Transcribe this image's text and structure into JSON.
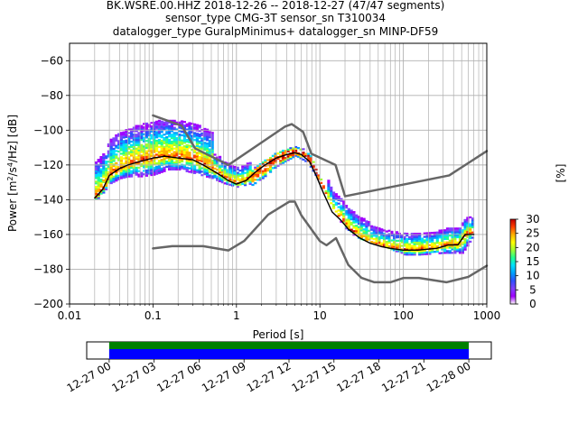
{
  "title_lines": [
    "BK.WSRE.00.HHZ   2018-12-26 -- 2018-12-27  (47/47 segments)",
    "sensor_type CMG-3T sensor_sn T310034",
    "datalogger_type GuralpMinimus+ datalogger_sn MINP-DF59"
  ],
  "chart_data": {
    "type": "heatmap",
    "xlabel": "Period [s]",
    "ylabel": "Power [m²/s⁴/Hz] [dB]",
    "ylabel_parts": {
      "prefix": "Power [m",
      "sup1": "2",
      "mid": "/s",
      "sup2": "4",
      "suffix": "/Hz] [dB]"
    },
    "xscale": "log",
    "xlim": [
      0.01,
      1000
    ],
    "ylim": [
      -200,
      -50
    ],
    "xticks": [
      0.01,
      0.1,
      1,
      10,
      100,
      1000
    ],
    "xtick_labels": [
      "0.01",
      "0.1",
      "1",
      "10",
      "100",
      "1000"
    ],
    "yticks": [
      -200,
      -180,
      -160,
      -140,
      -120,
      -100,
      -80,
      -60
    ],
    "ytick_labels": [
      "−200",
      "−180",
      "−160",
      "−140",
      "−120",
      "−100",
      "−80",
      "−60"
    ],
    "grid": true,
    "colorbar": {
      "label": "[%]",
      "range": [
        0,
        30
      ],
      "ticks": [
        0,
        5,
        10,
        15,
        20,
        25,
        30
      ],
      "tick_labels": [
        "0",
        "5",
        "10",
        "15",
        "20",
        "25",
        "30"
      ]
    },
    "mean_curve": {
      "period": [
        0.02,
        0.025,
        0.03,
        0.04,
        0.05,
        0.07,
        0.1,
        0.14,
        0.2,
        0.3,
        0.4,
        0.6,
        0.8,
        1.0,
        1.3,
        1.7,
        2.2,
        3.0,
        4.0,
        5.0,
        6.0,
        7.5,
        9.0,
        11,
        14,
        18,
        22,
        30,
        40,
        55,
        70,
        100,
        150,
        250,
        350,
        450,
        550,
        700
      ],
      "power_db": [
        -139,
        -134,
        -126,
        -122,
        -120,
        -118,
        -116,
        -115,
        -116,
        -117,
        -120,
        -125,
        -129,
        -131,
        -129,
        -124,
        -120,
        -116,
        -114,
        -113,
        -114,
        -118,
        -126,
        -136,
        -147,
        -152,
        -157,
        -162,
        -165,
        -167,
        -168,
        -169,
        -169,
        -168,
        -166,
        -166,
        -160,
        -160
      ]
    },
    "percentile_curve_lower": {
      "period": [
        0.02,
        0.025,
        0.03,
        0.04,
        0.05,
        0.07,
        0.1,
        0.15,
        0.2,
        0.3,
        0.5,
        0.7,
        1.0,
        1.5,
        2.0,
        3.0,
        5.0,
        7.0,
        10,
        15,
        20,
        30,
        50,
        80,
        100,
        150,
        300,
        500,
        700
      ],
      "power_db": [
        -141,
        -136,
        -131,
        -128,
        -127,
        -127,
        -126,
        -123,
        -123,
        -125,
        -128,
        -131,
        -133,
        -131,
        -127,
        -120,
        -114,
        -118,
        -130,
        -147,
        -157,
        -162,
        -165,
        -169,
        -172,
        -172,
        -171,
        -171,
        -160
      ]
    },
    "peterson_nhnm": {
      "period": [
        0.1,
        0.22,
        0.32,
        0.8,
        3.8,
        4.6,
        6.3,
        7.9,
        15.4,
        20,
        354.8,
        1000
      ],
      "power_db": [
        -91.5,
        -97.4,
        -110.5,
        -120,
        -98,
        -96.5,
        -101,
        -113.5,
        -120,
        -138,
        -126,
        -112
      ]
    },
    "peterson_nlnm": {
      "period": [
        0.1,
        0.17,
        0.4,
        0.8,
        1.24,
        2.4,
        4.3,
        5.0,
        6.0,
        10,
        12,
        15.6,
        21.9,
        31.6,
        45,
        70,
        101,
        154,
        328,
        600,
        1000
      ],
      "power_db": [
        -168,
        -166.7,
        -166.7,
        -169.2,
        -163.7,
        -148.6,
        -141.1,
        -141.1,
        -149,
        -163.8,
        -166.2,
        -162.1,
        -177.5,
        -185,
        -187.5,
        -187.5,
        -185,
        -185,
        -187.5,
        -184.4,
        -178
      ]
    },
    "coverage": {
      "time_ticks": [
        "12-27 00",
        "12-27 03",
        "12-27 06",
        "12-27 09",
        "12-27 12",
        "12-27 15",
        "12-27 18",
        "12-27 21",
        "12-28 00"
      ],
      "time_tick_hours": [
        0,
        3,
        6,
        9,
        12,
        15,
        18,
        21,
        24
      ],
      "range_hours": [
        -1.5,
        25.5
      ],
      "data_hours": [
        0,
        24
      ],
      "bar_colors": [
        "#008000",
        "#0000ff"
      ]
    }
  },
  "colors": {
    "mean": "#000000",
    "noise_model": "#666666",
    "grid": "#b0b0b0"
  },
  "colormap": [
    "#ffffff",
    "#a000ff",
    "#8040ff",
    "#3050ff",
    "#00a0ff",
    "#00e0ff",
    "#20ff90",
    "#a0ff30",
    "#ffff00",
    "#ffb000",
    "#ff4000",
    "#c00000"
  ]
}
